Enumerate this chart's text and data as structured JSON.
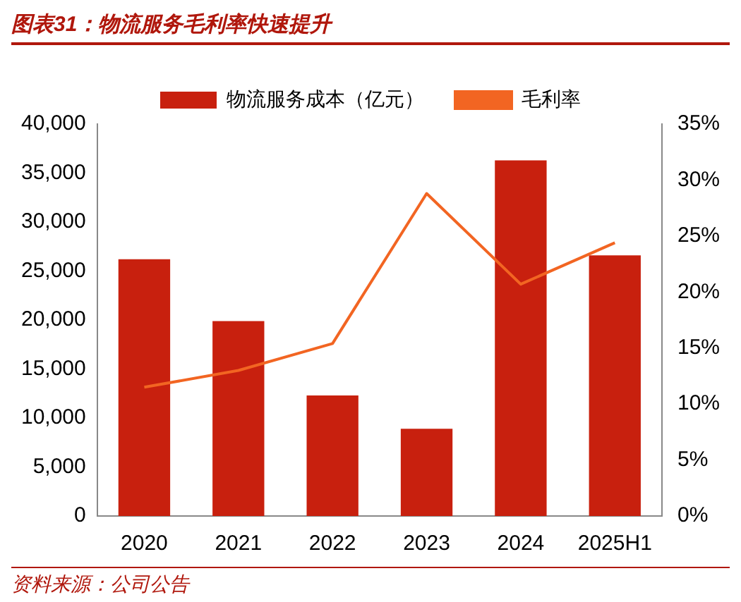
{
  "chart_data": {
    "type": "bar",
    "title": "图表31：物流服务毛利率快速提升",
    "categories": [
      "2020",
      "2021",
      "2022",
      "2023",
      "2024",
      "2025H1"
    ],
    "series": [
      {
        "name": "物流服务成本（亿元）",
        "color": "#c8200e",
        "values": [
          26200,
          19900,
          12300,
          8900,
          36300,
          26600
        ]
      },
      {
        "name": "毛利率",
        "type": "line",
        "axis": "y2",
        "color": "#f26522",
        "marker": "none",
        "values": [
          11.5,
          13.0,
          15.4,
          28.8,
          20.7,
          24.4
        ]
      }
    ],
    "ylim": [
      0,
      40000
    ],
    "yticks": [
      {
        "value": 0,
        "label": "0"
      },
      {
        "value": 5000,
        "label": "5,000"
      },
      {
        "value": 10000,
        "label": "10,000"
      },
      {
        "value": 15000,
        "label": "15,000"
      },
      {
        "value": 20000,
        "label": "20,000"
      },
      {
        "value": 25000,
        "label": "25,000"
      },
      {
        "value": 30000,
        "label": "30,000"
      },
      {
        "value": 35000,
        "label": "35,000"
      },
      {
        "value": 40000,
        "label": "40,000"
      }
    ],
    "y2lim": [
      0,
      35
    ],
    "y2ticks": [
      {
        "value": 0,
        "label": "0%"
      },
      {
        "value": 5,
        "label": "5%"
      },
      {
        "value": 10,
        "label": "10%"
      },
      {
        "value": 15,
        "label": "15%"
      },
      {
        "value": 20,
        "label": "20%"
      },
      {
        "value": 25,
        "label": "25%"
      },
      {
        "value": 30,
        "label": "30%"
      },
      {
        "value": 35,
        "label": "35%"
      }
    ],
    "grid": false,
    "legend": "top",
    "annotations": [
      "资料来源：公司公告"
    ]
  }
}
